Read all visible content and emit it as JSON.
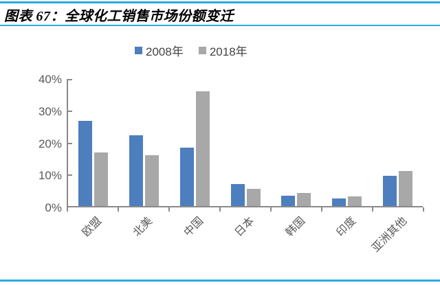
{
  "figure": {
    "title": "图表 67：全球化工销售市场份额变迁",
    "accent_color": "#29A9E1"
  },
  "chart_data": {
    "type": "bar",
    "title": "全球化工销售市场份额变迁",
    "categories": [
      "欧盟",
      "北美",
      "中国",
      "日本",
      "韩国",
      "印度",
      "亚洲其他"
    ],
    "series": [
      {
        "name": "2008年",
        "color": "#4D7EBE",
        "values": [
          26.5,
          22.0,
          18.2,
          6.9,
          3.2,
          2.4,
          9.5
        ]
      },
      {
        "name": "2018年",
        "color": "#A8A8A8",
        "values": [
          16.7,
          15.9,
          35.8,
          5.4,
          4.0,
          3.0,
          11.0
        ]
      }
    ],
    "ylabel": "",
    "xlabel": "",
    "ylim": [
      0,
      40
    ],
    "yticks": [
      "0%",
      "10%",
      "20%",
      "30%",
      "40%"
    ],
    "unit": "percent",
    "grid": false,
    "legend_position": "top",
    "axis_color": "#898989",
    "label_color": "#595959"
  }
}
